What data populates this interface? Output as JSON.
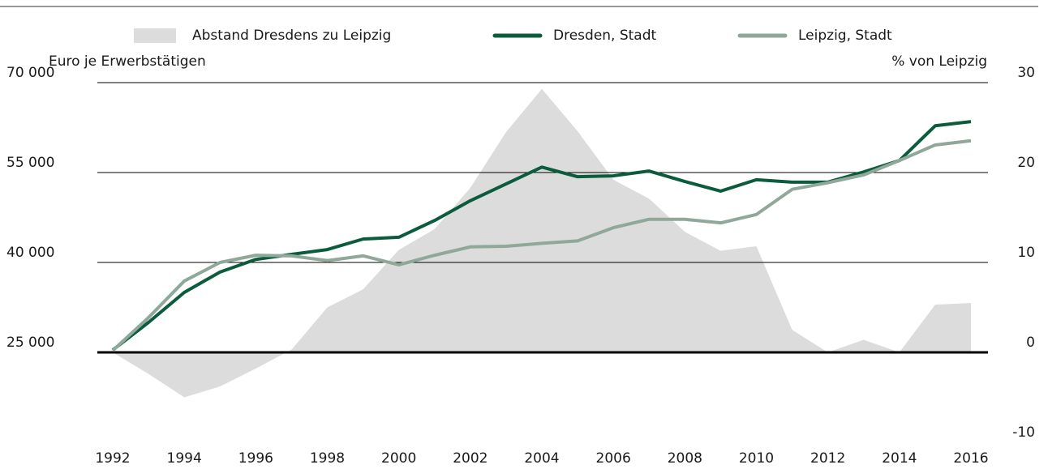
{
  "chart_data": {
    "type": "line",
    "y_label": "Euro je Erwerbstätigen",
    "y2_label": "% von Leipzig",
    "x": [
      1992,
      1993,
      1994,
      1995,
      1996,
      1997,
      1998,
      1999,
      2000,
      2001,
      2002,
      2003,
      2004,
      2005,
      2006,
      2007,
      2008,
      2009,
      2010,
      2011,
      2012,
      2013,
      2014,
      2015,
      2016
    ],
    "xlim": [
      1992,
      2016
    ],
    "xticks": [
      1992,
      1994,
      1996,
      1998,
      2000,
      2002,
      2004,
      2006,
      2008,
      2010,
      2012,
      2014,
      2016
    ],
    "ylim": [
      10000,
      70000
    ],
    "yticks": [
      {
        "value": 25000,
        "label": "25 000"
      },
      {
        "value": 40000,
        "label": "40 000"
      },
      {
        "value": 55000,
        "label": "55 000"
      },
      {
        "value": 70000,
        "label": "70 000"
      }
    ],
    "y2lim": [
      -10,
      30
    ],
    "y2ticks": [
      -10,
      0,
      10,
      20,
      30
    ],
    "grid": true,
    "legend": "top",
    "series": [
      {
        "name": "Abstand Dresdens zu Leipzig",
        "kind": "area",
        "axis": "y2",
        "color": "#dcdcdc",
        "values": [
          0,
          -2.4,
          -5,
          -3.8,
          -1.8,
          0.3,
          5,
          7,
          11.4,
          13.7,
          18.3,
          24.5,
          29.3,
          24.6,
          19.2,
          17.1,
          13.4,
          11.3,
          11.8,
          2.5,
          0,
          1.4,
          0,
          5.3,
          5.5
        ]
      },
      {
        "name": "Dresden, Stadt",
        "color": "#0a5c3c",
        "values": [
          25400,
          30000,
          35000,
          38400,
          40500,
          41350,
          42150,
          43900,
          44200,
          47000,
          50300,
          53100,
          55900,
          54300,
          54450,
          55250,
          53500,
          51900,
          53800,
          53400,
          53400,
          55100,
          57000,
          62800,
          63500
        ]
      },
      {
        "name": "Leipzig, Stadt",
        "color": "#8fa89a",
        "values": [
          25300,
          30800,
          36900,
          40000,
          41200,
          41100,
          40300,
          41100,
          39600,
          41200,
          42600,
          42700,
          43200,
          43600,
          45800,
          47200,
          47200,
          46600,
          48000,
          52200,
          53300,
          54600,
          57000,
          59600,
          60300
        ]
      }
    ]
  }
}
